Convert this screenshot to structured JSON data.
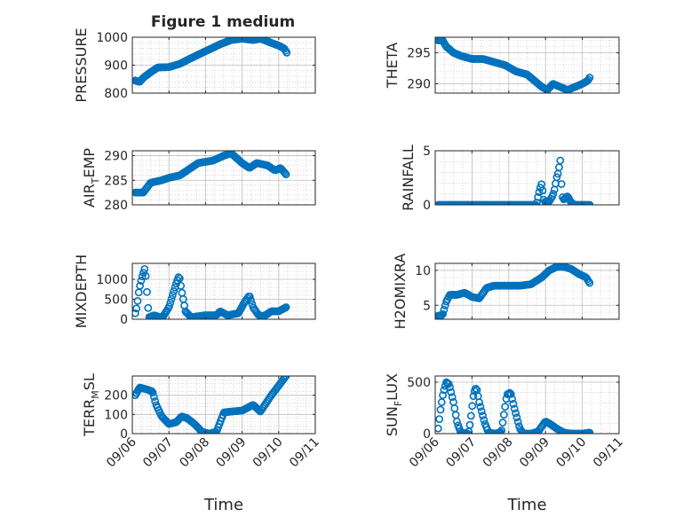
{
  "figure": {
    "title": "Figure 1 medium"
  },
  "colors": {
    "marker": "#0072BD",
    "axis": "#262626",
    "grid": "#bdbdbd",
    "background": "#ffffff"
  },
  "chart_data": [
    {
      "type": "scatter",
      "name": "PRESSURE",
      "ylabel": "PRESSURE",
      "ylabel_parts": [
        "PRESSURE"
      ],
      "xlabel": "",
      "xticklabels": [],
      "ylim": [
        800,
        1000
      ],
      "yticks": [
        800,
        900,
        1000
      ],
      "grid": true,
      "minor_grid": true,
      "anchors": [
        [
          6.08,
          845
        ],
        [
          6.2,
          840
        ],
        [
          6.3,
          855
        ],
        [
          6.5,
          875
        ],
        [
          6.7,
          892
        ],
        [
          7.0,
          893
        ],
        [
          7.3,
          905
        ],
        [
          7.6,
          925
        ],
        [
          8.0,
          950
        ],
        [
          8.4,
          975
        ],
        [
          8.7,
          990
        ],
        [
          9.0,
          995
        ],
        [
          9.3,
          990
        ],
        [
          9.5,
          995
        ],
        [
          9.7,
          985
        ],
        [
          10.0,
          970
        ],
        [
          10.15,
          960
        ],
        [
          10.22,
          945
        ]
      ]
    },
    {
      "type": "scatter",
      "name": "THETA",
      "ylabel": "THETA",
      "ylabel_parts": [
        "THETA"
      ],
      "xlabel": "",
      "xticklabels": [],
      "ylim": [
        288.5,
        297.5
      ],
      "yticks": [
        290,
        295
      ],
      "grid": true,
      "minor_grid": true,
      "anchors": [
        [
          6.08,
          297
        ],
        [
          6.2,
          297
        ],
        [
          6.3,
          296
        ],
        [
          6.5,
          295
        ],
        [
          6.7,
          294.5
        ],
        [
          7.0,
          294
        ],
        [
          7.3,
          294
        ],
        [
          7.6,
          293.5
        ],
        [
          7.9,
          293
        ],
        [
          8.2,
          292
        ],
        [
          8.5,
          291.5
        ],
        [
          8.7,
          290.5
        ],
        [
          8.9,
          289.5
        ],
        [
          9.05,
          289
        ],
        [
          9.2,
          290
        ],
        [
          9.4,
          289.5
        ],
        [
          9.6,
          289
        ],
        [
          9.8,
          289.5
        ],
        [
          10.0,
          290
        ],
        [
          10.15,
          290.5
        ],
        [
          10.2,
          291
        ]
      ]
    },
    {
      "type": "scatter",
      "name": "AIR_TEMP",
      "ylabel": "AIR_TEMP",
      "ylabel_parts": [
        "AIR",
        "T",
        "EMP"
      ],
      "xlabel": "",
      "xticklabels": [],
      "ylim": [
        280,
        291
      ],
      "yticks": [
        280,
        285,
        290
      ],
      "grid": true,
      "minor_grid": true,
      "anchors": [
        [
          6.08,
          282.5
        ],
        [
          6.3,
          282.5
        ],
        [
          6.5,
          284.5
        ],
        [
          6.8,
          285
        ],
        [
          7.0,
          285.5
        ],
        [
          7.3,
          286
        ],
        [
          7.6,
          287.5
        ],
        [
          7.8,
          288.5
        ],
        [
          8.2,
          289
        ],
        [
          8.5,
          290
        ],
        [
          8.7,
          290.5
        ],
        [
          9.0,
          288.5
        ],
        [
          9.2,
          287.5
        ],
        [
          9.4,
          288.5
        ],
        [
          9.7,
          288
        ],
        [
          9.9,
          287
        ],
        [
          10.05,
          287.5
        ],
        [
          10.2,
          286.2
        ]
      ]
    },
    {
      "type": "scatter",
      "name": "RAINFALL",
      "ylabel": "RAINFALL",
      "ylabel_parts": [
        "RAINFALL"
      ],
      "xlabel": "",
      "xticklabels": [],
      "ylim": [
        0,
        5
      ],
      "yticks": [
        0,
        5
      ],
      "grid": true,
      "minor_grid": true,
      "anchors": [
        [
          6.08,
          0
        ],
        [
          8.75,
          0
        ],
        [
          8.8,
          0.8
        ],
        [
          8.85,
          1.5
        ],
        [
          8.9,
          2.0
        ],
        [
          8.95,
          0.5
        ],
        [
          9.0,
          0.2
        ],
        [
          9.1,
          0.3
        ],
        [
          9.2,
          0.9
        ],
        [
          9.25,
          1.5
        ],
        [
          9.3,
          2.5
        ],
        [
          9.35,
          3.0
        ],
        [
          9.4,
          4.2
        ],
        [
          9.45,
          0.8
        ],
        [
          9.5,
          0.5
        ],
        [
          9.6,
          0.8
        ],
        [
          9.7,
          0.2
        ],
        [
          9.8,
          0
        ],
        [
          10.2,
          0
        ]
      ]
    },
    {
      "type": "scatter",
      "name": "MIXDEPTH",
      "ylabel": "MIXDEPTH",
      "ylabel_parts": [
        "MIXDEPTH"
      ],
      "xlabel": "",
      "xticklabels": [],
      "ylim": [
        0,
        1400
      ],
      "yticks": [
        0,
        500,
        1000
      ],
      "grid": true,
      "minor_grid": true,
      "anchors": [
        [
          6.08,
          150
        ],
        [
          6.12,
          300
        ],
        [
          6.18,
          700
        ],
        [
          6.22,
          900
        ],
        [
          6.28,
          1100
        ],
        [
          6.35,
          1300
        ],
        [
          6.45,
          50
        ],
        [
          6.6,
          100
        ],
        [
          6.75,
          50
        ],
        [
          6.85,
          80
        ],
        [
          7.0,
          300
        ],
        [
          7.1,
          600
        ],
        [
          7.2,
          900
        ],
        [
          7.28,
          1100
        ],
        [
          7.35,
          700
        ],
        [
          7.45,
          200
        ],
        [
          7.6,
          50
        ],
        [
          8.0,
          100
        ],
        [
          8.3,
          100
        ],
        [
          8.4,
          200
        ],
        [
          8.6,
          100
        ],
        [
          8.9,
          150
        ],
        [
          9.05,
          400
        ],
        [
          9.2,
          600
        ],
        [
          9.3,
          300
        ],
        [
          9.45,
          100
        ],
        [
          9.6,
          80
        ],
        [
          9.8,
          200
        ],
        [
          10.0,
          200
        ],
        [
          10.2,
          300
        ]
      ]
    },
    {
      "type": "scatter",
      "name": "H2OMIXRA",
      "ylabel": "H2OMIXRA",
      "ylabel_parts": [
        "H2OMIXRA"
      ],
      "xlabel": "",
      "xticklabels": [],
      "ylim": [
        3,
        11
      ],
      "yticks": [
        5,
        10
      ],
      "grid": true,
      "minor_grid": true,
      "anchors": [
        [
          6.08,
          3.5
        ],
        [
          6.2,
          3.6
        ],
        [
          6.3,
          5.5
        ],
        [
          6.4,
          6.5
        ],
        [
          6.6,
          6.5
        ],
        [
          6.8,
          6.8
        ],
        [
          7.0,
          6.2
        ],
        [
          7.2,
          6.0
        ],
        [
          7.4,
          7.5
        ],
        [
          7.6,
          7.8
        ],
        [
          8.0,
          7.8
        ],
        [
          8.3,
          7.8
        ],
        [
          8.6,
          8.0
        ],
        [
          8.9,
          9.0
        ],
        [
          9.1,
          10
        ],
        [
          9.3,
          10.5
        ],
        [
          9.5,
          10.5
        ],
        [
          9.7,
          10.2
        ],
        [
          9.9,
          9.5
        ],
        [
          10.1,
          9.0
        ],
        [
          10.2,
          8.2
        ]
      ]
    },
    {
      "type": "scatter",
      "name": "TERR_MSL",
      "ylabel": "TERR_MSL",
      "ylabel_parts": [
        "TERR",
        "M",
        "SL"
      ],
      "xlabel": "Time",
      "xticklabels": [
        "09/06",
        "09/07",
        "09/08",
        "09/09",
        "09/10",
        "09/11"
      ],
      "ylim": [
        0,
        300
      ],
      "yticks": [
        0,
        100,
        200
      ],
      "grid": true,
      "minor_grid": true,
      "anchors": [
        [
          6.08,
          200
        ],
        [
          6.2,
          240
        ],
        [
          6.4,
          230
        ],
        [
          6.55,
          220
        ],
        [
          6.65,
          150
        ],
        [
          6.8,
          90
        ],
        [
          7.0,
          50
        ],
        [
          7.2,
          60
        ],
        [
          7.35,
          90
        ],
        [
          7.5,
          80
        ],
        [
          7.7,
          50
        ],
        [
          7.9,
          10
        ],
        [
          8.1,
          0
        ],
        [
          8.3,
          10
        ],
        [
          8.5,
          110
        ],
        [
          8.7,
          115
        ],
        [
          9.0,
          120
        ],
        [
          9.3,
          150
        ],
        [
          9.5,
          115
        ],
        [
          9.8,
          200
        ],
        [
          10.0,
          250
        ],
        [
          10.2,
          300
        ]
      ]
    },
    {
      "type": "scatter",
      "name": "SUN_FLUX",
      "ylabel": "SUN_FLUX",
      "ylabel_parts": [
        "SUN",
        "F",
        "LUX"
      ],
      "xlabel": "Time",
      "xticklabels": [
        "09/06",
        "09/07",
        "09/08",
        "09/09",
        "09/10",
        "09/11"
      ],
      "ylim": [
        0,
        560
      ],
      "yticks": [
        0,
        500
      ],
      "grid": true,
      "minor_grid": true,
      "anchors": [
        [
          6.08,
          50
        ],
        [
          6.15,
          250
        ],
        [
          6.22,
          400
        ],
        [
          6.3,
          500
        ],
        [
          6.38,
          480
        ],
        [
          6.5,
          300
        ],
        [
          6.6,
          100
        ],
        [
          6.7,
          10
        ],
        [
          6.9,
          0
        ],
        [
          6.95,
          100
        ],
        [
          7.05,
          400
        ],
        [
          7.12,
          450
        ],
        [
          7.2,
          300
        ],
        [
          7.35,
          100
        ],
        [
          7.45,
          10
        ],
        [
          7.65,
          0
        ],
        [
          7.8,
          20
        ],
        [
          7.95,
          380
        ],
        [
          8.05,
          400
        ],
        [
          8.15,
          250
        ],
        [
          8.3,
          50
        ],
        [
          8.4,
          0
        ],
        [
          8.6,
          0
        ],
        [
          8.8,
          20
        ],
        [
          9.0,
          120
        ],
        [
          9.1,
          100
        ],
        [
          9.3,
          50
        ],
        [
          9.5,
          10
        ],
        [
          9.7,
          0
        ],
        [
          10.0,
          0
        ],
        [
          10.2,
          10
        ]
      ]
    }
  ]
}
